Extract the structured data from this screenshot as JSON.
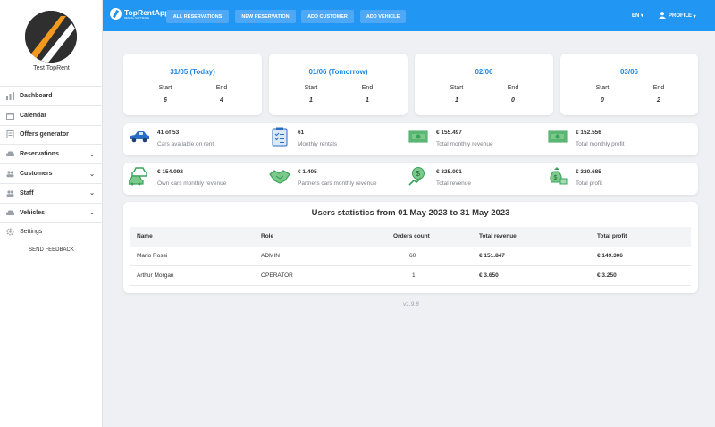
{
  "sidebar": {
    "company": "Test TopRent",
    "items": [
      {
        "label": "Dashboard",
        "icon": "chart-icon",
        "chevron": false
      },
      {
        "label": "Calendar",
        "icon": "calendar-icon",
        "chevron": false
      },
      {
        "label": "Offers generator",
        "icon": "document-icon",
        "chevron": false
      },
      {
        "label": "Reservations",
        "icon": "car-icon",
        "chevron": true
      },
      {
        "label": "Customers",
        "icon": "people-icon",
        "chevron": true
      },
      {
        "label": "Staff",
        "icon": "people-icon",
        "chevron": true
      },
      {
        "label": "Vehicles",
        "icon": "car-icon",
        "chevron": true
      },
      {
        "label": "Settings",
        "icon": "gear-icon",
        "chevron": false
      }
    ],
    "feedback": "SEND FEEDBACK"
  },
  "topbar": {
    "brand": "TopRentApp",
    "brand_sub": "RENTAL SOFTWARE",
    "buttons": [
      "ALL RESERVATIONS",
      "NEW RESERVATION",
      "ADD CUSTOMER",
      "ADD VEHICLE"
    ],
    "lang": "EN",
    "profile": "PROFILE",
    "color": "#2196f3"
  },
  "days": [
    {
      "title": "31/05  (Today)",
      "start_label": "Start",
      "end_label": "End",
      "start": "6",
      "end": "4"
    },
    {
      "title": "01/06  (Tomorrow)",
      "start_label": "Start",
      "end_label": "End",
      "start": "1",
      "end": "1"
    },
    {
      "title": "02/06",
      "start_label": "Start",
      "end_label": "End",
      "start": "1",
      "end": "0"
    },
    {
      "title": "03/06",
      "start_label": "Start",
      "end_label": "End",
      "start": "0",
      "end": "2"
    }
  ],
  "stats_row1": [
    {
      "value": "41 of 53",
      "label": "Cars available on rent",
      "icon": "car-icon"
    },
    {
      "value": "61",
      "label": "Monthly rentals",
      "icon": "clipboard-icon"
    },
    {
      "value": "€ 155.497",
      "label": "Total monthly revenue",
      "icon": "banknote-icon"
    },
    {
      "value": "€ 152.556",
      "label": "Total monthly profit",
      "icon": "banknote-icon"
    }
  ],
  "stats_row2": [
    {
      "value": "€ 154.092",
      "label": "Own cars monthly revenue",
      "icon": "cars-icon"
    },
    {
      "value": "€ 1.405",
      "label": "Partners cars monthly revenue",
      "icon": "handshake-icon"
    },
    {
      "value": "€ 325.001",
      "label": "Total revenue",
      "icon": "growth-icon"
    },
    {
      "value": "€ 320.685",
      "label": "Total profit",
      "icon": "money-bag-icon"
    }
  ],
  "users_table": {
    "title": "Users statistics from 01 May 2023 to 31 May 2023",
    "columns": [
      "Name",
      "Role",
      "Orders count",
      "Total revenue",
      "Total profit"
    ],
    "rows": [
      [
        "Mario Rossi",
        "ADMIN",
        "60",
        "€ 151.847",
        "€ 149.306"
      ],
      [
        "Arthur Morgan",
        "OPERATOR",
        "1",
        "€ 3.650",
        "€ 3.250"
      ]
    ]
  },
  "version": "v1.9.8",
  "colors": {
    "accent": "#2196f3",
    "icon_green": "#3aa35a",
    "logo_orange": "#f39a1e"
  }
}
